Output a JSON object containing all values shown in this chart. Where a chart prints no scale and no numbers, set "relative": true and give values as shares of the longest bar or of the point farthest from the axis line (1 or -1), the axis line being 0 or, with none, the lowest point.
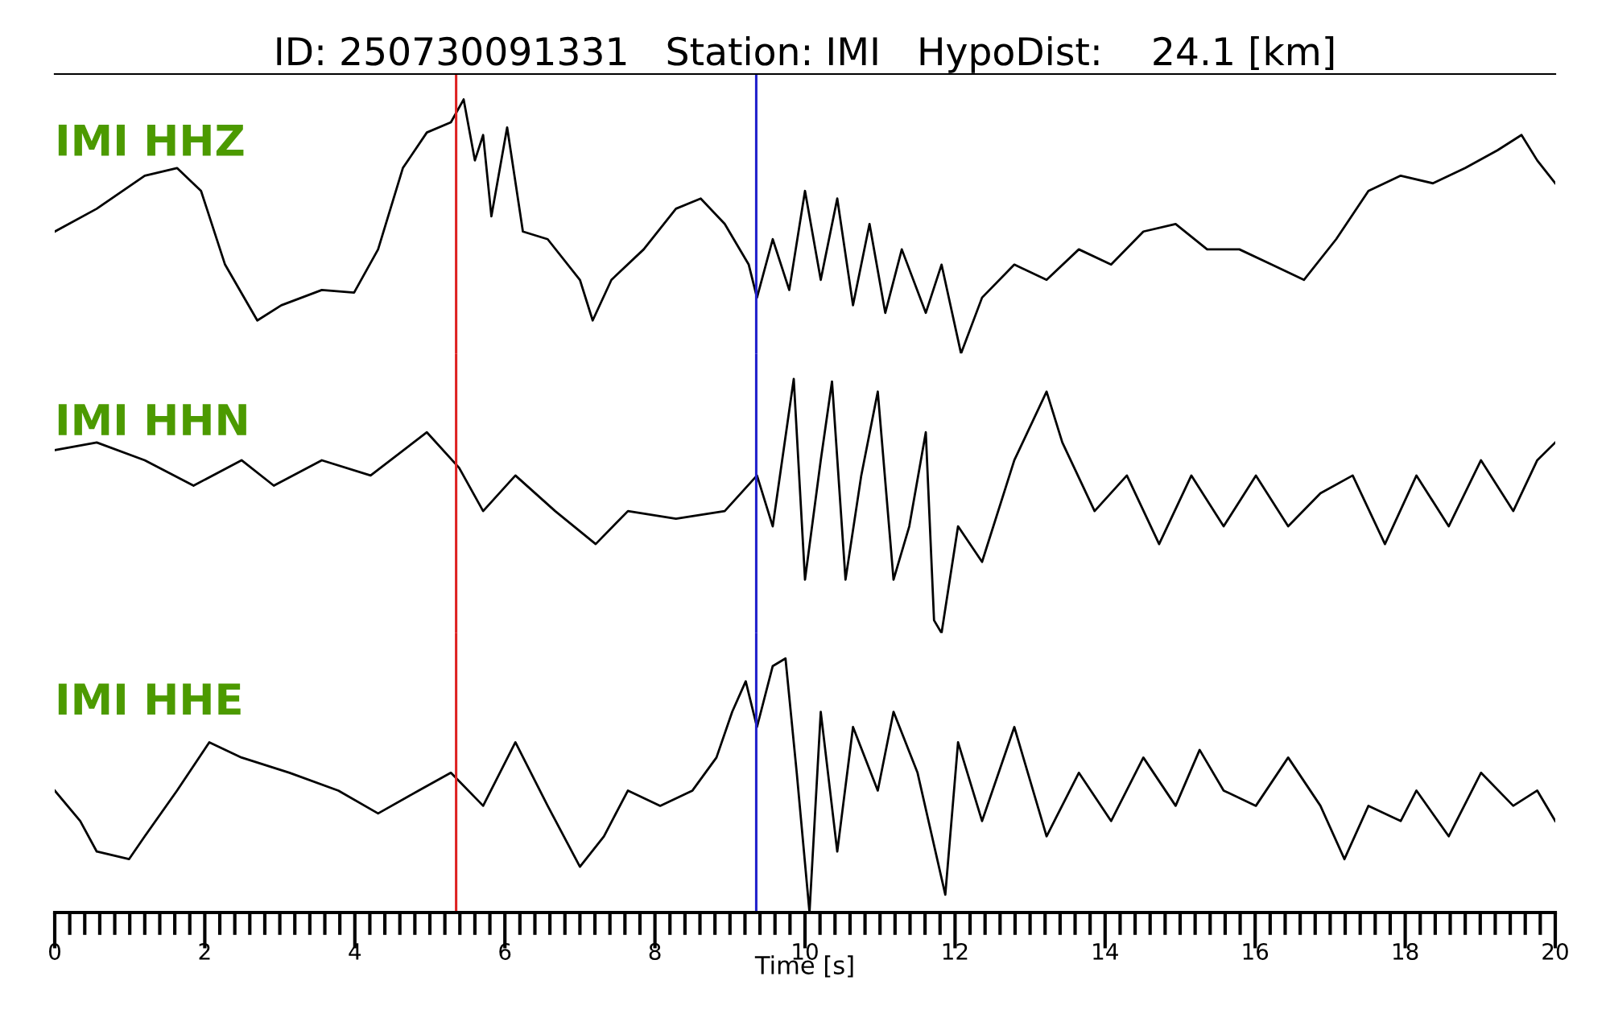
{
  "chart_data": [
    {
      "type": "line",
      "title": "ID: 250730091331   Station: IMI   HypoDist:    24.1 [km]",
      "relative": true,
      "xlim": [
        0,
        20
      ],
      "tick_labels": false,
      "ref_lines": [
        {
          "axis": "x",
          "value": 5.35,
          "color": "#dd2020"
        },
        {
          "axis": "x",
          "value": 9.35,
          "color": "#2020cc"
        }
      ],
      "series": [
        {
          "name": "IMI HHZ",
          "color": "#000000",
          "x": [
            0,
            0.56,
            1.2,
            1.63,
            1.95,
            2.27,
            2.7,
            3.02,
            3.56,
            3.99,
            4.31,
            4.64,
            4.96,
            5.28,
            5.45,
            5.6,
            5.71,
            5.82,
            6.03,
            6.24,
            6.57,
            7.0,
            7.17,
            7.42,
            7.85,
            8.28,
            8.61,
            8.93,
            9.25,
            9.36,
            9.57,
            9.79,
            10.0,
            10.21,
            10.43,
            10.64,
            10.86,
            11.07,
            11.29,
            11.61,
            11.82,
            12.08,
            12.36,
            12.79,
            13.22,
            13.65,
            14.08,
            14.51,
            14.94,
            15.36,
            15.79,
            16.22,
            16.65,
            17.08,
            17.51,
            17.94,
            18.37,
            18.8,
            19.23,
            19.55,
            19.76,
            20.0
          ],
          "values": [
            0.48,
            0.57,
            0.7,
            0.73,
            0.64,
            0.35,
            0.13,
            0.19,
            0.25,
            0.24,
            0.41,
            0.73,
            0.87,
            0.91,
            1.0,
            0.76,
            0.86,
            0.54,
            0.89,
            0.48,
            0.45,
            0.29,
            0.13,
            0.29,
            0.41,
            0.57,
            0.61,
            0.51,
            0.35,
            0.22,
            0.45,
            0.25,
            0.64,
            0.29,
            0.61,
            0.19,
            0.51,
            0.16,
            0.41,
            0.16,
            0.35,
            0,
            0.22,
            0.35,
            0.29,
            0.41,
            0.35,
            0.48,
            0.51,
            0.41,
            0.41,
            0.35,
            0.29,
            0.45,
            0.64,
            0.7,
            0.67,
            0.73,
            0.8,
            0.86,
            0.76,
            0.67
          ]
        }
      ]
    },
    {
      "type": "line",
      "relative": true,
      "xlim": [
        0,
        20
      ],
      "tick_labels": false,
      "ref_lines": [
        {
          "axis": "x",
          "value": 5.35,
          "color": "#dd2020"
        },
        {
          "axis": "x",
          "value": 9.35,
          "color": "#2020cc"
        }
      ],
      "series": [
        {
          "name": "IMI HHN",
          "color": "#000000",
          "x": [
            0,
            0.56,
            1.2,
            1.85,
            2.49,
            2.92,
            3.56,
            4.21,
            4.96,
            5.39,
            5.71,
            6.14,
            6.67,
            7.21,
            7.64,
            8.28,
            8.93,
            9.36,
            9.57,
            9.85,
            10.0,
            10.21,
            10.36,
            10.54,
            10.75,
            10.97,
            11.18,
            11.39,
            11.61,
            11.72,
            11.82,
            12.04,
            12.36,
            12.79,
            13.22,
            13.43,
            13.86,
            14.29,
            14.72,
            15.15,
            15.58,
            16.01,
            16.44,
            16.87,
            17.3,
            17.73,
            18.15,
            18.58,
            19.01,
            19.44,
            19.76,
            20.0
          ],
          "values": [
            0.72,
            0.75,
            0.68,
            0.58,
            0.68,
            0.58,
            0.68,
            0.62,
            0.79,
            0.65,
            0.48,
            0.62,
            0.48,
            0.35,
            0.48,
            0.45,
            0.48,
            0.62,
            0.42,
            1.0,
            0.21,
            0.68,
            0.99,
            0.21,
            0.62,
            0.95,
            0.21,
            0.42,
            0.79,
            0.05,
            0,
            0.42,
            0.28,
            0.68,
            0.95,
            0.75,
            0.48,
            0.62,
            0.35,
            0.62,
            0.42,
            0.62,
            0.42,
            0.55,
            0.62,
            0.35,
            0.62,
            0.42,
            0.68,
            0.48,
            0.68,
            0.75
          ]
        }
      ]
    },
    {
      "type": "line",
      "relative": true,
      "xlim": [
        0,
        20
      ],
      "xlabel": "Time [s]",
      "tick_labels": "x",
      "xticks": [
        0,
        {
          "value": 0.2,
          "label": null
        },
        {
          "value": 0.4,
          "label": null
        },
        {
          "value": 0.6,
          "label": null
        },
        {
          "value": 0.8,
          "label": null
        },
        {
          "value": 1,
          "label": null
        },
        {
          "value": 1.2,
          "label": null
        },
        {
          "value": 1.4,
          "label": null
        },
        {
          "value": 1.6,
          "label": null
        },
        {
          "value": 1.8,
          "label": null
        },
        2,
        {
          "value": 2.2,
          "label": null
        },
        {
          "value": 2.4,
          "label": null
        },
        {
          "value": 2.6,
          "label": null
        },
        {
          "value": 2.8,
          "label": null
        },
        {
          "value": 3,
          "label": null
        },
        {
          "value": 3.2,
          "label": null
        },
        {
          "value": 3.4,
          "label": null
        },
        {
          "value": 3.6,
          "label": null
        },
        {
          "value": 3.8,
          "label": null
        },
        4,
        {
          "value": 4.2,
          "label": null
        },
        {
          "value": 4.4,
          "label": null
        },
        {
          "value": 4.6,
          "label": null
        },
        {
          "value": 4.8,
          "label": null
        },
        {
          "value": 5,
          "label": null
        },
        {
          "value": 5.2,
          "label": null
        },
        {
          "value": 5.4,
          "label": null
        },
        {
          "value": 5.6,
          "label": null
        },
        {
          "value": 5.8,
          "label": null
        },
        6,
        {
          "value": 6.2,
          "label": null
        },
        {
          "value": 6.4,
          "label": null
        },
        {
          "value": 6.6,
          "label": null
        },
        {
          "value": 6.8,
          "label": null
        },
        {
          "value": 7,
          "label": null
        },
        {
          "value": 7.2,
          "label": null
        },
        {
          "value": 7.4,
          "label": null
        },
        {
          "value": 7.6,
          "label": null
        },
        {
          "value": 7.8,
          "label": null
        },
        8,
        {
          "value": 8.2,
          "label": null
        },
        {
          "value": 8.4,
          "label": null
        },
        {
          "value": 8.6,
          "label": null
        },
        {
          "value": 8.8,
          "label": null
        },
        {
          "value": 9,
          "label": null
        },
        {
          "value": 9.2,
          "label": null
        },
        {
          "value": 9.4,
          "label": null
        },
        {
          "value": 9.6,
          "label": null
        },
        {
          "value": 9.8,
          "label": null
        },
        10,
        {
          "value": 10.2,
          "label": null
        },
        {
          "value": 10.4,
          "label": null
        },
        {
          "value": 10.6,
          "label": null
        },
        {
          "value": 10.8,
          "label": null
        },
        {
          "value": 11,
          "label": null
        },
        {
          "value": 11.2,
          "label": null
        },
        {
          "value": 11.4,
          "label": null
        },
        {
          "value": 11.6,
          "label": null
        },
        {
          "value": 11.8,
          "label": null
        },
        12,
        {
          "value": 12.2,
          "label": null
        },
        {
          "value": 12.4,
          "label": null
        },
        {
          "value": 12.6,
          "label": null
        },
        {
          "value": 12.8,
          "label": null
        },
        {
          "value": 13,
          "label": null
        },
        {
          "value": 13.2,
          "label": null
        },
        {
          "value": 13.4,
          "label": null
        },
        {
          "value": 13.6,
          "label": null
        },
        {
          "value": 13.8,
          "label": null
        },
        14,
        {
          "value": 14.2,
          "label": null
        },
        {
          "value": 14.4,
          "label": null
        },
        {
          "value": 14.6,
          "label": null
        },
        {
          "value": 14.8,
          "label": null
        },
        {
          "value": 15,
          "label": null
        },
        {
          "value": 15.2,
          "label": null
        },
        {
          "value": 15.4,
          "label": null
        },
        {
          "value": 15.6,
          "label": null
        },
        {
          "value": 15.8,
          "label": null
        },
        16,
        {
          "value": 16.2,
          "label": null
        },
        {
          "value": 16.4,
          "label": null
        },
        {
          "value": 16.6,
          "label": null
        },
        {
          "value": 16.8,
          "label": null
        },
        {
          "value": 17,
          "label": null
        },
        {
          "value": 17.2,
          "label": null
        },
        {
          "value": 17.4,
          "label": null
        },
        {
          "value": 17.6,
          "label": null
        },
        {
          "value": 17.8,
          "label": null
        },
        18,
        {
          "value": 18.2,
          "label": null
        },
        {
          "value": 18.4,
          "label": null
        },
        {
          "value": 18.6,
          "label": null
        },
        {
          "value": 18.8,
          "label": null
        },
        {
          "value": 19,
          "label": null
        },
        {
          "value": 19.2,
          "label": null
        },
        {
          "value": 19.4,
          "label": null
        },
        {
          "value": 19.6,
          "label": null
        },
        {
          "value": 19.8,
          "label": null
        },
        20
      ],
      "ref_lines": [
        {
          "axis": "x",
          "value": 5.35,
          "color": "#dd2020"
        },
        {
          "axis": "x",
          "value": 9.35,
          "color": "#2020cc"
        }
      ],
      "series": [
        {
          "name": "IMI HHE",
          "color": "#000000",
          "x": [
            0,
            0.34,
            0.56,
            0.99,
            1.2,
            1.63,
            2.06,
            2.49,
            3.13,
            3.78,
            4.31,
            4.85,
            5.28,
            5.71,
            6.14,
            6.57,
            7.0,
            7.32,
            7.64,
            8.07,
            8.5,
            8.82,
            9.03,
            9.21,
            9.36,
            9.57,
            9.74,
            9.89,
            10.06,
            10.21,
            10.43,
            10.64,
            10.97,
            11.18,
            11.5,
            11.87,
            12.04,
            12.36,
            12.79,
            13.22,
            13.65,
            14.08,
            14.51,
            14.94,
            15.26,
            15.58,
            16.01,
            16.44,
            16.87,
            17.19,
            17.51,
            17.94,
            18.15,
            18.58,
            19.01,
            19.44,
            19.76,
            20.0
          ],
          "values": [
            0.48,
            0.36,
            0.24,
            0.21,
            0.3,
            0.48,
            0.67,
            0.61,
            0.55,
            0.48,
            0.39,
            0.48,
            0.55,
            0.42,
            0.67,
            0.42,
            0.18,
            0.3,
            0.48,
            0.42,
            0.48,
            0.61,
            0.79,
            0.91,
            0.73,
            0.97,
            1.0,
            0.55,
            0,
            0.79,
            0.24,
            0.73,
            0.48,
            0.79,
            0.55,
            0.07,
            0.67,
            0.36,
            0.73,
            0.3,
            0.55,
            0.36,
            0.61,
            0.42,
            0.64,
            0.48,
            0.42,
            0.61,
            0.42,
            0.21,
            0.42,
            0.36,
            0.48,
            0.3,
            0.55,
            0.42,
            0.48,
            0.36
          ]
        }
      ]
    }
  ]
}
